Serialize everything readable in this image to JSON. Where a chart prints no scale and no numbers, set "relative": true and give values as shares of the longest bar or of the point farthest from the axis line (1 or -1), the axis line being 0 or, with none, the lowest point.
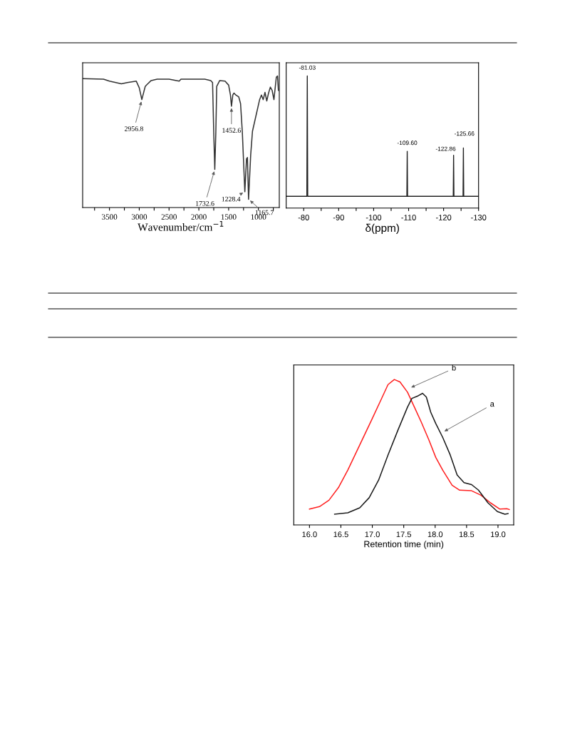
{
  "chart_data": [
    {
      "type": "line",
      "relative": true,
      "xlabel": "Wavenumber/cm$^{−1}$",
      "xlim": [
        3950,
        650
      ],
      "tick_labels": "x",
      "grid": false,
      "xticks": [
        {
          "value": 3750,
          "label": null
        },
        3500,
        {
          "value": 3250,
          "label": null
        },
        3000,
        {
          "value": 2750,
          "label": null
        },
        2500,
        {
          "value": 2250,
          "label": null
        },
        2000,
        {
          "value": 1750,
          "label": null
        },
        1500,
        {
          "value": 1250,
          "label": null
        },
        1000,
        {
          "value": 750,
          "label": null
        }
      ],
      "series": [
        {
          "color": "#333333",
          "x": [
            3940,
            3600,
            3500,
            3300,
            3200,
            3050,
            3000,
            2956.8,
            2900,
            2870,
            2800,
            2700,
            2500,
            2330,
            2300,
            1900,
            1800,
            1770,
            1750,
            1732.6,
            1715,
            1700,
            1650,
            1560,
            1500,
            1470,
            1452.6,
            1430,
            1410,
            1380,
            1330,
            1300,
            1270,
            1228.4,
            1200,
            1185,
            1165.7,
            1130,
            1100,
            1050,
            980,
            950,
            920,
            890,
            860,
            830,
            800,
            770,
            740,
            700,
            680,
            665
          ],
          "values": [
            0.98,
            0.975,
            0.96,
            0.94,
            0.95,
            0.96,
            0.91,
            0.82,
            0.92,
            0.935,
            0.965,
            0.975,
            0.975,
            0.96,
            0.975,
            0.975,
            0.965,
            0.95,
            0.57,
            0.29,
            0.57,
            0.92,
            0.965,
            0.96,
            0.93,
            0.855,
            0.77,
            0.855,
            0.87,
            0.855,
            0.84,
            0.79,
            0.57,
            0.12,
            0.37,
            0.38,
            0.063,
            0.4,
            0.58,
            0.68,
            0.82,
            0.855,
            0.82,
            0.875,
            0.81,
            0.87,
            0.915,
            0.89,
            0.82,
            0.99,
            1.0,
            0.89
          ]
        }
      ],
      "annotations": [
        {
          "text": "2956.8",
          "x": 2956.8,
          "y": 0.82
        },
        {
          "text": "1732.6",
          "x": 1732.6,
          "y": 0.29
        },
        {
          "text": "1452.6",
          "x": 1452.6,
          "y": 0.77
        },
        {
          "text": "1228.4",
          "x": 1228.4,
          "y": 0.12
        },
        {
          "text": "1165.7",
          "x": 1165.7,
          "y": 0.063
        }
      ]
    },
    {
      "type": "line",
      "relative": true,
      "xlabel": "δ(ppm)",
      "xlim": [
        -75,
        -130
      ],
      "tick_labels": "x",
      "grid": false,
      "xticks": [
        -80,
        {
          "value": -85,
          "label": null
        },
        -90,
        {
          "value": -95,
          "label": null
        },
        -100,
        {
          "value": -105,
          "label": null
        },
        -110,
        {
          "value": -115,
          "label": null
        },
        -120,
        {
          "value": -125,
          "label": null
        },
        -130
      ],
      "series": [
        {
          "color": "#222222",
          "x": [
            -75,
            -80.9,
            -81.03,
            -81.15,
            -109.5,
            -109.6,
            -109.7,
            -122.76,
            -122.86,
            -122.96,
            -125.56,
            -125.66,
            -125.76,
            -130
          ],
          "values": [
            0.089,
            0.089,
            1.0,
            0.089,
            0.089,
            0.43,
            0.089,
            0.089,
            0.4,
            0.089,
            0.089,
            0.455,
            0.089,
            0.089
          ]
        }
      ],
      "annotations": [
        {
          "text": "-81.03",
          "x": -81.03,
          "y": 1.0
        },
        {
          "text": "-109.60",
          "x": -109.6,
          "y": 0.43
        },
        {
          "text": "-122.86",
          "x": -122.86,
          "y": 0.4
        },
        {
          "text": "-125.66",
          "x": -125.66,
          "y": 0.455
        }
      ]
    },
    {
      "type": "line",
      "relative": true,
      "xlabel": "Retention time (min)",
      "xlim": [
        15.75,
        19.25
      ],
      "xticks": [
        {
          "value": 16,
          "label": "16.0"
        },
        16.5,
        {
          "value": 17,
          "label": "17.0"
        },
        17.5,
        {
          "value": 18,
          "label": "18.0"
        },
        18.5,
        {
          "value": 19,
          "label": "19.0"
        }
      ],
      "tick_labels": "x",
      "grid": false,
      "series": [
        {
          "color": "#ff2020",
          "x": [
            16.0,
            16.16,
            16.31,
            16.46,
            16.61,
            16.8,
            16.99,
            17.14,
            17.25,
            17.35,
            17.44,
            17.56,
            17.67,
            17.78,
            17.9,
            18.01,
            18.12,
            18.27,
            18.39,
            18.58,
            18.73,
            18.88,
            19.03,
            19.14,
            19.18
          ],
          "values": [
            0.109,
            0.126,
            0.17,
            0.256,
            0.377,
            0.55,
            0.723,
            0.862,
            0.965,
            1.0,
            0.983,
            0.913,
            0.81,
            0.706,
            0.585,
            0.464,
            0.377,
            0.273,
            0.239,
            0.235,
            0.204,
            0.152,
            0.109,
            0.112,
            0.106
          ]
        },
        {
          "color": "#1a1a1a",
          "x": [
            16.4,
            16.61,
            16.8,
            16.95,
            17.1,
            17.25,
            17.41,
            17.56,
            17.63,
            17.73,
            17.8,
            17.86,
            17.93,
            18.01,
            18.12,
            18.24,
            18.35,
            18.46,
            18.58,
            18.69,
            18.84,
            18.99,
            19.11,
            19.16
          ],
          "values": [
            0.074,
            0.083,
            0.118,
            0.187,
            0.308,
            0.481,
            0.654,
            0.81,
            0.87,
            0.888,
            0.905,
            0.879,
            0.775,
            0.697,
            0.602,
            0.481,
            0.343,
            0.291,
            0.277,
            0.239,
            0.152,
            0.092,
            0.074,
            0.078
          ]
        }
      ],
      "annotations": [
        {
          "text": "b",
          "x": 17.59,
          "y": 0.94
        },
        {
          "text": "a",
          "x": 18.12,
          "y": 0.637
        }
      ]
    }
  ]
}
